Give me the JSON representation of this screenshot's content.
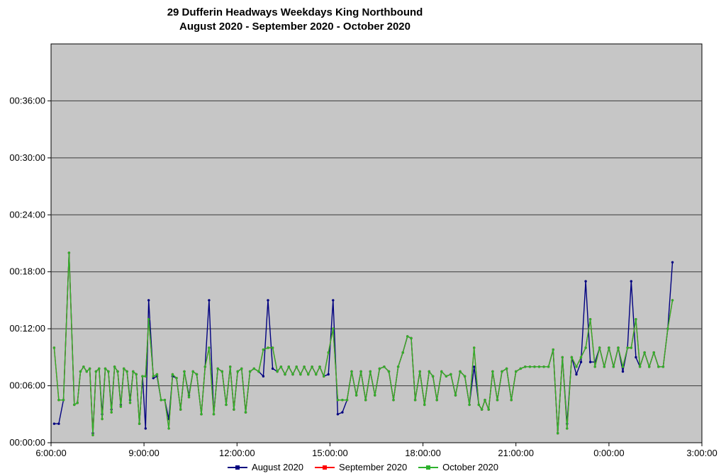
{
  "chart": {
    "title_line1": "29 Dufferin Headways Weekdays King Northbound",
    "title_line2": "August 2020 - September 2020 - October 2020"
  },
  "chart_data": {
    "type": "line",
    "title": "29 Dufferin Headways Weekdays King Northbound August 2020 - September 2020 - October 2020",
    "x_unit": "time of day (decimal hours, values >= 24 are after midnight)",
    "y_unit": "headway (minutes, labelled as hh:mm:ss)",
    "plot_bg": "#C6C6C6",
    "grid": "horizontal",
    "legend_position": "bottom",
    "x_axis": {
      "min": 6,
      "max": 27,
      "tick_positions": [
        6,
        9,
        12,
        15,
        18,
        21,
        24,
        27
      ],
      "tick_labels": [
        "6:00:00",
        "9:00:00",
        "12:00:00",
        "15:00:00",
        "18:00:00",
        "21:00:00",
        "0:00:00",
        "3:00:00"
      ]
    },
    "y_axis": {
      "min": 0,
      "max": 42,
      "tick_positions": [
        0,
        6,
        12,
        18,
        24,
        30,
        36
      ],
      "tick_labels": [
        "00:00:00",
        "00:06:00",
        "00:12:00",
        "00:18:00",
        "00:24:00",
        "00:30:00",
        "00:36:00"
      ]
    },
    "series": [
      {
        "name": "August 2020",
        "color": "#000080",
        "column": 1
      },
      {
        "name": "September 2020",
        "color": "#FF0000",
        "column": 2
      },
      {
        "name": "October 2020",
        "color": "#2DB22D",
        "column": 3
      }
    ],
    "points_format": [
      "time_hours",
      "august_minutes",
      "september_minutes",
      "october_minutes"
    ],
    "points": [
      [
        6.1,
        2.0,
        10.0,
        10.0
      ],
      [
        6.25,
        2.0,
        4.5,
        4.5
      ],
      [
        6.4,
        4.5,
        4.5,
        4.5
      ],
      [
        6.58,
        20.0,
        20.0,
        20.0
      ],
      [
        6.75,
        4.0,
        4.0,
        4.0
      ],
      [
        6.85,
        4.2,
        4.2,
        4.2
      ],
      [
        6.95,
        7.5,
        7.5,
        7.5
      ],
      [
        7.05,
        8.0,
        8.0,
        8.0
      ],
      [
        7.15,
        7.5,
        7.5,
        7.5
      ],
      [
        7.25,
        7.8,
        7.8,
        7.8
      ],
      [
        7.35,
        1.0,
        0.8,
        0.8
      ],
      [
        7.45,
        7.5,
        7.5,
        7.5
      ],
      [
        7.55,
        7.8,
        7.8,
        7.8
      ],
      [
        7.65,
        3.0,
        2.5,
        2.5
      ],
      [
        7.75,
        7.8,
        7.8,
        7.8
      ],
      [
        7.85,
        7.5,
        7.5,
        7.5
      ],
      [
        7.95,
        3.5,
        3.2,
        3.2
      ],
      [
        8.05,
        8.0,
        8.0,
        8.0
      ],
      [
        8.15,
        7.5,
        7.5,
        7.5
      ],
      [
        8.25,
        4.0,
        3.8,
        3.8
      ],
      [
        8.35,
        7.8,
        7.8,
        7.8
      ],
      [
        8.45,
        7.5,
        7.5,
        7.5
      ],
      [
        8.55,
        4.5,
        4.2,
        4.2
      ],
      [
        8.65,
        7.5,
        7.5,
        7.5
      ],
      [
        8.75,
        7.2,
        7.2,
        7.2
      ],
      [
        8.85,
        2.0,
        2.0,
        2.0
      ],
      [
        8.95,
        7.0,
        7.0,
        7.0
      ],
      [
        9.05,
        1.5,
        7.0,
        7.0
      ],
      [
        9.15,
        15.0,
        13.0,
        13.0
      ],
      [
        9.3,
        6.8,
        7.0,
        7.0
      ],
      [
        9.42,
        7.0,
        7.2,
        7.2
      ],
      [
        9.55,
        4.5,
        4.5,
        4.5
      ],
      [
        9.67,
        4.5,
        4.5,
        4.5
      ],
      [
        9.8,
        2.5,
        1.5,
        1.5
      ],
      [
        9.92,
        7.0,
        7.2,
        7.2
      ],
      [
        10.05,
        6.8,
        6.8,
        6.8
      ],
      [
        10.18,
        3.5,
        3.5,
        3.5
      ],
      [
        10.3,
        7.5,
        7.5,
        7.5
      ],
      [
        10.45,
        5.0,
        4.8,
        4.8
      ],
      [
        10.58,
        7.5,
        7.5,
        7.5
      ],
      [
        10.7,
        7.2,
        7.2,
        7.2
      ],
      [
        10.85,
        3.0,
        3.0,
        3.0
      ],
      [
        10.97,
        8.0,
        8.0,
        8.0
      ],
      [
        11.1,
        15.0,
        10.0,
        10.0
      ],
      [
        11.25,
        3.0,
        3.0,
        3.0
      ],
      [
        11.38,
        7.8,
        7.8,
        7.8
      ],
      [
        11.52,
        7.5,
        7.5,
        7.5
      ],
      [
        11.65,
        4.0,
        4.0,
        4.0
      ],
      [
        11.78,
        8.0,
        8.0,
        8.0
      ],
      [
        11.9,
        3.5,
        3.5,
        3.5
      ],
      [
        12.02,
        7.5,
        7.5,
        7.5
      ],
      [
        12.15,
        7.8,
        7.8,
        7.8
      ],
      [
        12.28,
        3.2,
        3.2,
        3.2
      ],
      [
        12.42,
        7.5,
        7.5,
        7.5
      ],
      [
        12.55,
        7.8,
        7.8,
        7.8
      ],
      [
        12.7,
        7.5,
        7.5,
        7.5
      ],
      [
        12.85,
        7.0,
        9.8,
        9.8
      ],
      [
        13.0,
        15.0,
        10.0,
        10.0
      ],
      [
        13.15,
        7.8,
        10.0,
        10.0
      ],
      [
        13.3,
        7.5,
        7.5,
        7.5
      ],
      [
        13.42,
        8.0,
        8.0,
        8.0
      ],
      [
        13.55,
        7.2,
        7.2,
        7.2
      ],
      [
        13.67,
        8.0,
        8.0,
        8.0
      ],
      [
        13.8,
        7.2,
        7.2,
        7.2
      ],
      [
        13.92,
        8.0,
        8.0,
        8.0
      ],
      [
        14.05,
        7.2,
        7.2,
        7.2
      ],
      [
        14.17,
        8.0,
        8.0,
        8.0
      ],
      [
        14.3,
        7.2,
        7.2,
        7.2
      ],
      [
        14.42,
        8.0,
        8.0,
        8.0
      ],
      [
        14.55,
        7.2,
        7.2,
        7.2
      ],
      [
        14.67,
        8.0,
        8.0,
        8.0
      ],
      [
        14.8,
        7.0,
        7.0,
        7.0
      ],
      [
        14.95,
        7.2,
        9.5,
        9.5
      ],
      [
        15.1,
        15.0,
        12.0,
        12.0
      ],
      [
        15.25,
        3.0,
        4.5,
        4.5
      ],
      [
        15.4,
        3.2,
        4.5,
        4.5
      ],
      [
        15.55,
        4.5,
        4.5,
        4.5
      ],
      [
        15.7,
        7.5,
        7.5,
        7.5
      ],
      [
        15.85,
        5.0,
        5.0,
        5.0
      ],
      [
        16.0,
        7.5,
        7.5,
        7.5
      ],
      [
        16.15,
        4.5,
        4.5,
        4.5
      ],
      [
        16.3,
        7.5,
        7.5,
        7.5
      ],
      [
        16.45,
        5.0,
        5.0,
        5.0
      ],
      [
        16.6,
        7.8,
        7.8,
        7.8
      ],
      [
        16.75,
        8.0,
        8.0,
        8.0
      ],
      [
        16.9,
        7.5,
        7.5,
        7.5
      ],
      [
        17.05,
        4.5,
        4.5,
        4.5
      ],
      [
        17.2,
        8.0,
        8.0,
        8.0
      ],
      [
        17.35,
        9.5,
        9.5,
        9.5
      ],
      [
        17.5,
        11.2,
        11.2,
        11.2
      ],
      [
        17.62,
        11.0,
        11.0,
        11.0
      ],
      [
        17.75,
        4.5,
        4.5,
        4.5
      ],
      [
        17.9,
        7.5,
        7.5,
        7.5
      ],
      [
        18.05,
        4.0,
        4.0,
        4.0
      ],
      [
        18.2,
        7.5,
        7.5,
        7.5
      ],
      [
        18.32,
        7.0,
        7.0,
        7.0
      ],
      [
        18.45,
        4.5,
        4.5,
        4.5
      ],
      [
        18.6,
        7.5,
        7.5,
        7.5
      ],
      [
        18.75,
        7.0,
        7.0,
        7.0
      ],
      [
        18.9,
        7.2,
        7.2,
        7.2
      ],
      [
        19.05,
        5.0,
        5.0,
        5.0
      ],
      [
        19.2,
        7.5,
        7.5,
        7.5
      ],
      [
        19.35,
        7.0,
        7.0,
        7.0
      ],
      [
        19.5,
        4.0,
        4.0,
        4.0
      ],
      [
        19.65,
        8.0,
        10.0,
        10.0
      ],
      [
        19.8,
        4.0,
        4.0,
        4.0
      ],
      [
        19.9,
        3.5,
        3.5,
        3.5
      ],
      [
        20.0,
        4.5,
        4.5,
        4.5
      ],
      [
        20.12,
        3.5,
        3.5,
        3.5
      ],
      [
        20.25,
        7.5,
        7.5,
        7.5
      ],
      [
        20.4,
        4.5,
        4.5,
        4.5
      ],
      [
        20.55,
        7.5,
        7.5,
        7.5
      ],
      [
        20.7,
        7.8,
        7.8,
        7.8
      ],
      [
        20.85,
        4.5,
        4.5,
        4.5
      ],
      [
        21.0,
        7.5,
        7.5,
        7.5
      ],
      [
        21.15,
        7.8,
        7.8,
        7.8
      ],
      [
        21.3,
        8.0,
        8.0,
        8.0
      ],
      [
        21.45,
        8.0,
        8.0,
        8.0
      ],
      [
        21.6,
        8.0,
        8.0,
        8.0
      ],
      [
        21.75,
        8.0,
        8.0,
        8.0
      ],
      [
        21.9,
        8.0,
        8.0,
        8.0
      ],
      [
        22.05,
        8.0,
        8.0,
        8.0
      ],
      [
        22.2,
        9.8,
        9.8,
        9.8
      ],
      [
        22.35,
        1.0,
        1.0,
        1.0
      ],
      [
        22.5,
        9.0,
        9.0,
        9.0
      ],
      [
        22.65,
        2.0,
        1.5,
        1.5
      ],
      [
        22.8,
        9.0,
        9.0,
        9.0
      ],
      [
        22.95,
        7.2,
        8.0,
        8.0
      ],
      [
        23.1,
        8.5,
        9.0,
        9.0
      ],
      [
        23.25,
        17.0,
        10.0,
        10.0
      ],
      [
        23.4,
        8.5,
        13.0,
        13.0
      ],
      [
        23.55,
        8.5,
        8.0,
        8.0
      ],
      [
        23.7,
        10.0,
        10.0,
        10.0
      ],
      [
        23.85,
        8.0,
        8.0,
        8.0
      ],
      [
        24.0,
        10.0,
        10.0,
        10.0
      ],
      [
        24.15,
        8.0,
        8.0,
        8.0
      ],
      [
        24.3,
        10.0,
        10.0,
        10.0
      ],
      [
        24.45,
        7.5,
        8.0,
        8.0
      ],
      [
        24.6,
        10.0,
        10.0,
        10.0
      ],
      [
        24.72,
        17.0,
        10.0,
        10.0
      ],
      [
        24.87,
        9.0,
        13.0,
        13.0
      ],
      [
        25.0,
        8.0,
        8.0,
        8.0
      ],
      [
        25.15,
        9.5,
        9.5,
        9.5
      ],
      [
        25.3,
        8.0,
        8.0,
        8.0
      ],
      [
        25.45,
        9.5,
        9.5,
        9.5
      ],
      [
        25.6,
        8.0,
        8.0,
        8.0
      ],
      [
        25.75,
        8.0,
        8.0,
        8.0
      ],
      [
        25.9,
        12.0,
        12.0,
        12.0
      ],
      [
        26.05,
        19.0,
        15.0,
        15.0
      ]
    ]
  }
}
